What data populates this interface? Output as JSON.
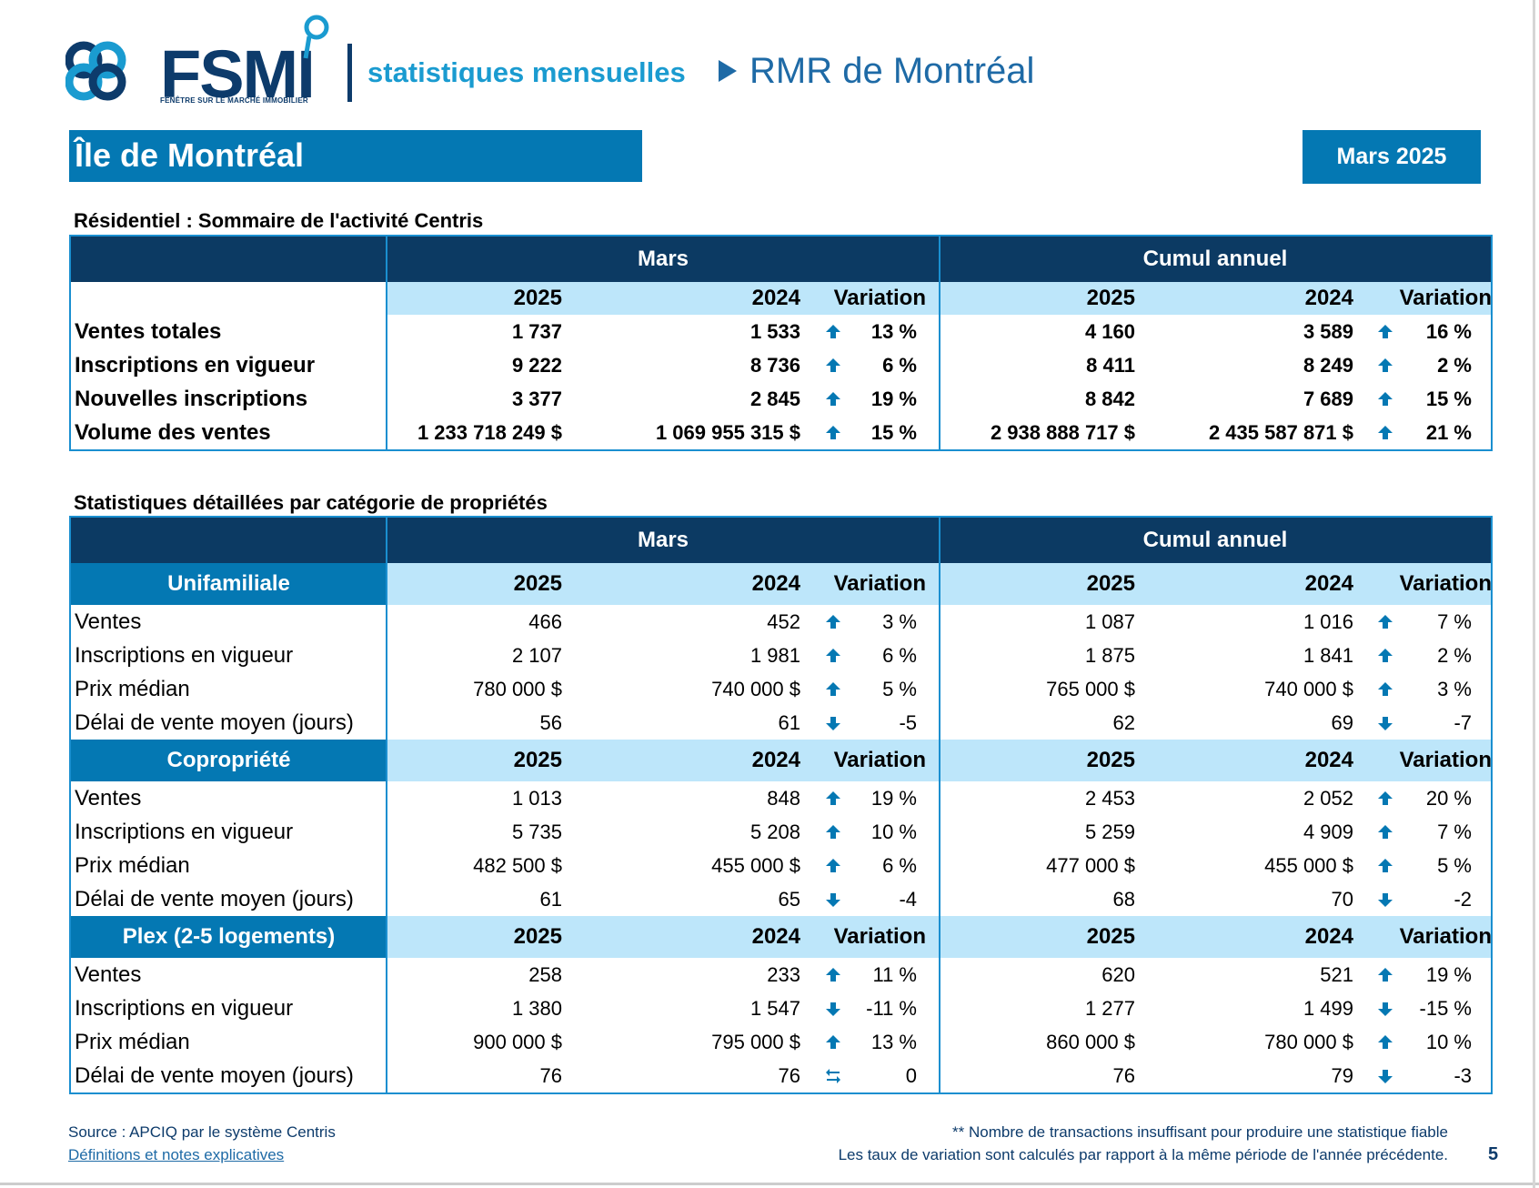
{
  "header": {
    "logo_text": "FSMI",
    "logo_subtitle": "FENÊTRE SUR LE MARCHÉ IMMOBILIER",
    "section": "statistiques mensuelles",
    "region": "RMR de Montréal"
  },
  "page_title": "Île de Montréal",
  "period_badge": "Mars 2025",
  "summary": {
    "title": "Résidentiel : Sommaire de l'activité Centris",
    "group_mars": "Mars",
    "group_cumul": "Cumul annuel",
    "col_2025": "2025",
    "col_2024": "2024",
    "col_var": "Variation",
    "rows": [
      {
        "label": "Ventes totales",
        "m25": "1 737",
        "m24": "1 533",
        "mdir": "up",
        "mvar": "13 %",
        "c25": "4 160",
        "c24": "3 589",
        "cdir": "up",
        "cvar": "16 %"
      },
      {
        "label": "Inscriptions en vigueur",
        "m25": "9 222",
        "m24": "8 736",
        "mdir": "up",
        "mvar": "6 %",
        "c25": "8 411",
        "c24": "8 249",
        "cdir": "up",
        "cvar": "2 %"
      },
      {
        "label": "Nouvelles inscriptions",
        "m25": "3 377",
        "m24": "2 845",
        "mdir": "up",
        "mvar": "19 %",
        "c25": "8 842",
        "c24": "7 689",
        "cdir": "up",
        "cvar": "15 %"
      },
      {
        "label": "Volume des ventes",
        "m25": "1 233 718 249  $",
        "m24": "1 069 955 315  $",
        "mdir": "up",
        "mvar": "15 %",
        "c25": "2 938 888 717  $",
        "c24": "2 435 587 871  $",
        "cdir": "up",
        "cvar": "21 %"
      }
    ]
  },
  "detail": {
    "title": "Statistiques détaillées par catégorie de propriétés",
    "group_mars": "Mars",
    "group_cumul": "Cumul annuel",
    "categories": [
      {
        "name": "Unifamiliale",
        "col_2025": "2025",
        "col_2024": "2024",
        "col_var": "Variation",
        "rows": [
          {
            "label": "Ventes",
            "m25": "466",
            "m24": "452",
            "mdir": "up",
            "mvar": "3 %",
            "c25": "1 087",
            "c24": "1 016",
            "cdir": "up",
            "cvar": "7 %"
          },
          {
            "label": "Inscriptions en vigueur",
            "m25": "2 107",
            "m24": "1 981",
            "mdir": "up",
            "mvar": "6 %",
            "c25": "1 875",
            "c24": "1 841",
            "cdir": "up",
            "cvar": "2 %"
          },
          {
            "label": "Prix médian",
            "m25": "780 000 $",
            "m24": "740 000 $",
            "mdir": "up",
            "mvar": "5 %",
            "c25": "765 000 $",
            "c24": "740 000 $",
            "cdir": "up",
            "cvar": "3 %"
          },
          {
            "label": "Délai de vente moyen (jours)",
            "m25": "56",
            "m24": "61",
            "mdir": "down",
            "mvar": "-5",
            "c25": "62",
            "c24": "69",
            "cdir": "down",
            "cvar": "-7"
          }
        ]
      },
      {
        "name": "Copropriété",
        "col_2025": "2025",
        "col_2024": "2024",
        "col_var": "Variation",
        "rows": [
          {
            "label": "Ventes",
            "m25": "1 013",
            "m24": "848",
            "mdir": "up",
            "mvar": "19 %",
            "c25": "2 453",
            "c24": "2 052",
            "cdir": "up",
            "cvar": "20 %"
          },
          {
            "label": "Inscriptions en vigueur",
            "m25": "5 735",
            "m24": "5 208",
            "mdir": "up",
            "mvar": "10 %",
            "c25": "5 259",
            "c24": "4 909",
            "cdir": "up",
            "cvar": "7 %"
          },
          {
            "label": "Prix médian",
            "m25": "482 500 $",
            "m24": "455 000 $",
            "mdir": "up",
            "mvar": "6 %",
            "c25": "477 000 $",
            "c24": "455 000 $",
            "cdir": "up",
            "cvar": "5 %"
          },
          {
            "label": "Délai de vente moyen (jours)",
            "m25": "61",
            "m24": "65",
            "mdir": "down",
            "mvar": "-4",
            "c25": "68",
            "c24": "70",
            "cdir": "down",
            "cvar": "-2"
          }
        ]
      },
      {
        "name": "Plex (2-5 logements)",
        "col_2025": "2025",
        "col_2024": "2024",
        "col_var": "Variation",
        "rows": [
          {
            "label": "Ventes",
            "m25": "258",
            "m24": "233",
            "mdir": "up",
            "mvar": "11 %",
            "c25": "620",
            "c24": "521",
            "cdir": "up",
            "cvar": "19 %"
          },
          {
            "label": "Inscriptions en vigueur",
            "m25": "1 380",
            "m24": "1 547",
            "mdir": "down",
            "mvar": "-11 %",
            "c25": "1 277",
            "c24": "1 499",
            "cdir": "down",
            "cvar": "-15 %"
          },
          {
            "label": "Prix médian",
            "m25": "900 000 $",
            "m24": "795 000 $",
            "mdir": "up",
            "mvar": "13 %",
            "c25": "860 000 $",
            "c24": "780 000 $",
            "cdir": "up",
            "cvar": "10 %"
          },
          {
            "label": "Délai de vente moyen (jours)",
            "m25": "76",
            "m24": "76",
            "mdir": "same",
            "mvar": "0",
            "c25": "76",
            "c24": "79",
            "cdir": "down",
            "cvar": "-3"
          }
        ]
      }
    ]
  },
  "footer": {
    "source": "Source : APCIQ par le système Centris",
    "definitions_link": "Définitions et notes explicatives",
    "note1": "** Nombre de transactions insuffisant pour produire une statistique fiable",
    "note2": "Les taux de variation sont calculés par rapport à la même période de l'année précédente.",
    "page": "5"
  },
  "colors": {
    "dark_navy": "#0c3a63",
    "accent_blue": "#0478b3",
    "light_blue": "#bde6fa",
    "border_blue": "#1a8fd0"
  },
  "icons": {
    "up": "arrow-up-icon",
    "down": "arrow-down-icon",
    "same": "swap-arrows-icon"
  }
}
